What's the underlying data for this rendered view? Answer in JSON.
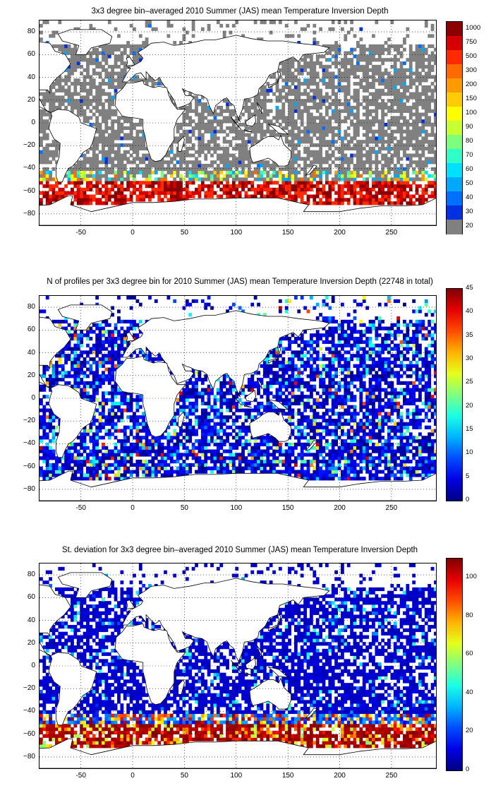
{
  "x_ticks": [
    "-50",
    "0",
    "50",
    "100",
    "150",
    "200",
    "250"
  ],
  "y_ticks": [
    "80",
    "60",
    "40",
    "20",
    "0",
    "−20",
    "−40",
    "−60",
    "−80"
  ],
  "panels": [
    {
      "title": "3x3 degree bin–averaged 2010 Summer (JAS) mean Temperature Inversion Depth",
      "colorbar": {
        "type": "categorical",
        "labels": [
          "1000",
          "750",
          "500",
          "300",
          "200",
          "150",
          "100",
          "90",
          "80",
          "70",
          "60",
          "50",
          "40",
          "30",
          "20"
        ],
        "colors": [
          "#8b0000",
          "#d50000",
          "#ff2a00",
          "#ff6a00",
          "#ff9a00",
          "#ffcc00",
          "#ffff00",
          "#c8ff32",
          "#7cff7c",
          "#31ffc8",
          "#00e0ff",
          "#00a8ff",
          "#0070ff",
          "#0030e0",
          "#808080"
        ]
      }
    },
    {
      "title": "N of profiles per 3x3 degree bin for 2010 Summer (JAS) mean Temperature Inversion Depth  (22748 in total)",
      "colorbar": {
        "type": "continuous",
        "labels": [
          "45",
          "40",
          "35",
          "30",
          "25",
          "20",
          "15",
          "10",
          "5",
          "0"
        ],
        "range": [
          0,
          45
        ]
      }
    },
    {
      "title": "St. deviation for 3x3 degree bin–averaged 2010 Summer (JAS) mean Temperature Inversion Depth",
      "colorbar": {
        "type": "continuous",
        "labels": [
          "100",
          "80",
          "60",
          "40",
          "20",
          "0"
        ],
        "range": [
          0,
          110
        ]
      }
    }
  ]
}
